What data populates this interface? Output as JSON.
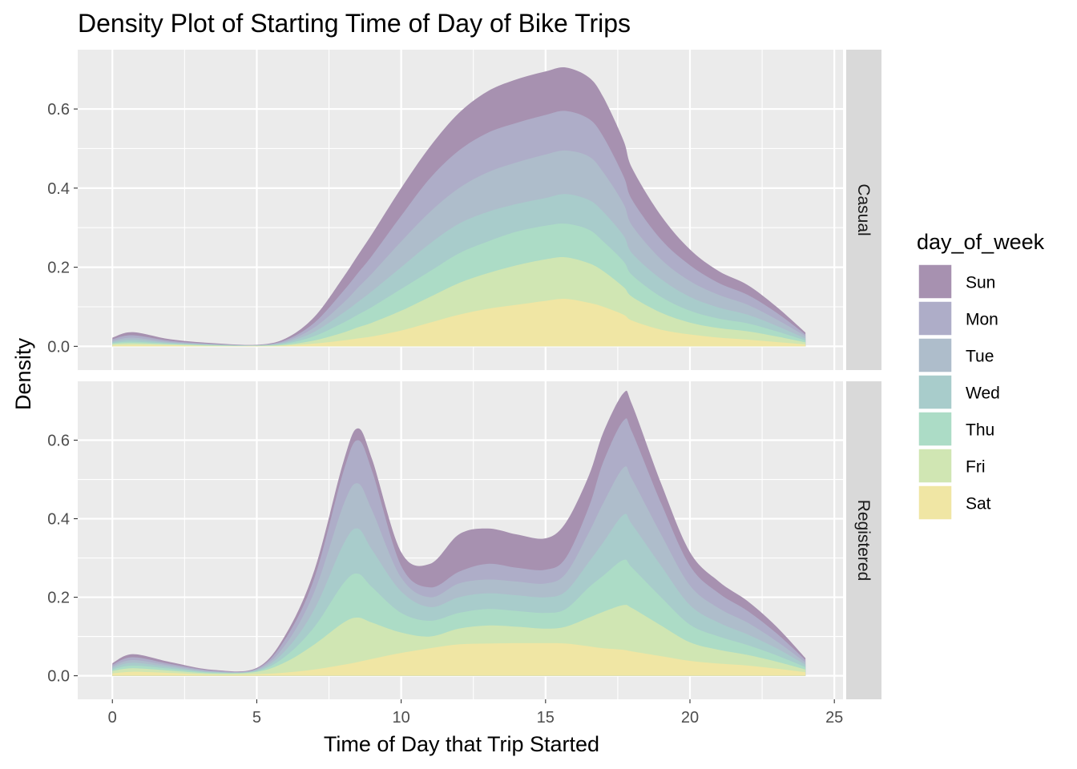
{
  "chart_data": {
    "type": "area",
    "stacked": true,
    "title": "Density Plot of Starting Time of Day of Bike Trips",
    "xlabel": "Time of Day that Trip Started",
    "ylabel": "Density",
    "xlim": [
      -1.2,
      25.3
    ],
    "ylim": [
      -0.06,
      0.75
    ],
    "x_ticks": [
      0,
      5,
      10,
      15,
      20,
      25
    ],
    "x_tick_labels": [
      "0",
      "5",
      "10",
      "15",
      "20",
      "25"
    ],
    "y_ticks": [
      0.0,
      0.2,
      0.4,
      0.6
    ],
    "y_tick_labels": [
      "0.0",
      "0.2",
      "0.4",
      "0.6"
    ],
    "grid": true,
    "legend": {
      "title": "day_of_week",
      "position": "right"
    },
    "series_order": [
      "Sun",
      "Mon",
      "Tue",
      "Wed",
      "Thu",
      "Fri",
      "Sat"
    ],
    "colors": {
      "Sun": "#a791b0",
      "Mon": "#aeadc8",
      "Tue": "#aebdcb",
      "Wed": "#a8cccb",
      "Thu": "#acdcc6",
      "Fri": "#d0e6b3",
      "Sat": "#f0e6a4"
    },
    "panel_background": "#ebebeb",
    "strip_background": "#d9d9d9",
    "x": [
      0,
      0.7,
      2,
      3.5,
      5,
      6,
      7,
      8,
      8.5,
      9,
      10,
      11,
      12,
      13,
      14,
      15,
      15.7,
      16.5,
      17,
      17.7,
      18,
      19,
      20,
      21,
      22,
      23,
      24
    ],
    "panels": [
      {
        "label": "Casual",
        "cumulative": {
          "Sun": [
            0.022,
            0.036,
            0.018,
            0.008,
            0.004,
            0.02,
            0.075,
            0.175,
            0.23,
            0.285,
            0.4,
            0.505,
            0.59,
            0.645,
            0.675,
            0.695,
            0.705,
            0.68,
            0.63,
            0.52,
            0.45,
            0.33,
            0.245,
            0.19,
            0.155,
            0.1,
            0.035
          ],
          "Mon": [
            0.018,
            0.028,
            0.014,
            0.006,
            0.003,
            0.016,
            0.06,
            0.14,
            0.185,
            0.23,
            0.33,
            0.425,
            0.495,
            0.54,
            0.565,
            0.585,
            0.595,
            0.575,
            0.53,
            0.43,
            0.37,
            0.27,
            0.205,
            0.16,
            0.13,
            0.085,
            0.03
          ],
          "Tue": [
            0.014,
            0.022,
            0.011,
            0.005,
            0.003,
            0.013,
            0.048,
            0.11,
            0.148,
            0.185,
            0.265,
            0.34,
            0.4,
            0.44,
            0.465,
            0.485,
            0.495,
            0.48,
            0.44,
            0.36,
            0.305,
            0.22,
            0.165,
            0.13,
            0.105,
            0.068,
            0.026
          ],
          "Wed": [
            0.011,
            0.017,
            0.009,
            0.004,
            0.002,
            0.01,
            0.037,
            0.085,
            0.112,
            0.14,
            0.2,
            0.26,
            0.31,
            0.34,
            0.36,
            0.375,
            0.385,
            0.37,
            0.34,
            0.28,
            0.235,
            0.17,
            0.125,
            0.098,
            0.08,
            0.052,
            0.02
          ],
          "Thu": [
            0.008,
            0.012,
            0.007,
            0.003,
            0.002,
            0.007,
            0.026,
            0.06,
            0.08,
            0.1,
            0.145,
            0.19,
            0.235,
            0.265,
            0.29,
            0.305,
            0.31,
            0.295,
            0.265,
            0.215,
            0.18,
            0.125,
            0.09,
            0.07,
            0.058,
            0.038,
            0.015
          ],
          "Fri": [
            0.006,
            0.008,
            0.005,
            0.002,
            0.001,
            0.004,
            0.015,
            0.035,
            0.048,
            0.06,
            0.09,
            0.125,
            0.16,
            0.185,
            0.205,
            0.22,
            0.225,
            0.21,
            0.19,
            0.15,
            0.125,
            0.085,
            0.06,
            0.046,
            0.038,
            0.025,
            0.01
          ],
          "Sat": [
            0.003,
            0.004,
            0.003,
            0.001,
            0.001,
            0.002,
            0.007,
            0.015,
            0.02,
            0.025,
            0.04,
            0.06,
            0.08,
            0.095,
            0.105,
            0.115,
            0.12,
            0.11,
            0.1,
            0.08,
            0.065,
            0.042,
            0.03,
            0.022,
            0.017,
            0.011,
            0.005
          ]
        }
      },
      {
        "label": "Registered",
        "cumulative": {
          "Sun": [
            0.032,
            0.055,
            0.035,
            0.015,
            0.02,
            0.105,
            0.27,
            0.545,
            0.63,
            0.55,
            0.315,
            0.285,
            0.36,
            0.375,
            0.36,
            0.35,
            0.39,
            0.51,
            0.62,
            0.72,
            0.69,
            0.49,
            0.315,
            0.24,
            0.19,
            0.125,
            0.045
          ],
          "Mon": [
            0.028,
            0.047,
            0.03,
            0.013,
            0.018,
            0.095,
            0.25,
            0.52,
            0.6,
            0.52,
            0.28,
            0.225,
            0.265,
            0.285,
            0.275,
            0.27,
            0.3,
            0.43,
            0.545,
            0.65,
            0.62,
            0.44,
            0.28,
            0.21,
            0.165,
            0.108,
            0.04
          ],
          "Tue": [
            0.024,
            0.04,
            0.026,
            0.011,
            0.016,
            0.08,
            0.215,
            0.435,
            0.49,
            0.42,
            0.25,
            0.2,
            0.235,
            0.245,
            0.24,
            0.235,
            0.26,
            0.365,
            0.44,
            0.53,
            0.5,
            0.36,
            0.23,
            0.172,
            0.135,
            0.088,
            0.034
          ],
          "Wed": [
            0.02,
            0.033,
            0.022,
            0.009,
            0.014,
            0.065,
            0.17,
            0.335,
            0.375,
            0.32,
            0.215,
            0.175,
            0.2,
            0.21,
            0.205,
            0.2,
            0.215,
            0.29,
            0.34,
            0.41,
            0.385,
            0.28,
            0.18,
            0.135,
            0.105,
            0.07,
            0.028
          ],
          "Thu": [
            0.016,
            0.026,
            0.018,
            0.008,
            0.012,
            0.05,
            0.125,
            0.235,
            0.26,
            0.225,
            0.16,
            0.14,
            0.16,
            0.17,
            0.165,
            0.16,
            0.17,
            0.225,
            0.255,
            0.295,
            0.275,
            0.2,
            0.13,
            0.1,
            0.078,
            0.052,
            0.022
          ],
          "Fri": [
            0.012,
            0.019,
            0.013,
            0.006,
            0.01,
            0.035,
            0.08,
            0.135,
            0.148,
            0.135,
            0.11,
            0.1,
            0.12,
            0.128,
            0.125,
            0.12,
            0.125,
            0.148,
            0.163,
            0.18,
            0.172,
            0.128,
            0.085,
            0.066,
            0.053,
            0.036,
            0.016
          ],
          "Sat": [
            0.006,
            0.01,
            0.007,
            0.003,
            0.004,
            0.008,
            0.016,
            0.028,
            0.035,
            0.043,
            0.058,
            0.07,
            0.08,
            0.082,
            0.083,
            0.083,
            0.082,
            0.075,
            0.07,
            0.066,
            0.062,
            0.05,
            0.038,
            0.031,
            0.026,
            0.018,
            0.009
          ]
        }
      }
    ]
  }
}
